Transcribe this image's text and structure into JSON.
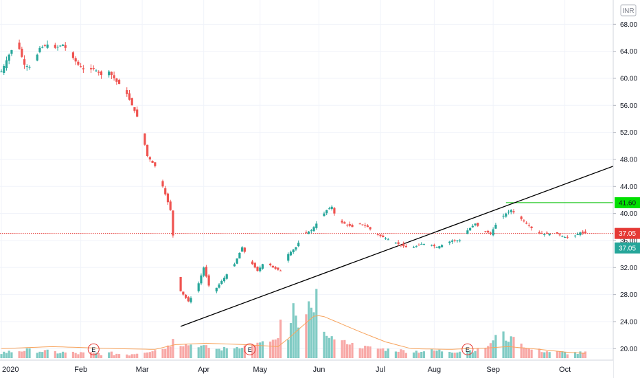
{
  "currency_label": "INR",
  "colors": {
    "up": "#26a69a",
    "down": "#ef5350",
    "up_volume": "#80cbc4",
    "down_volume": "#f8a8a6",
    "volume_ma": "#f7a35c",
    "trendline": "#000000",
    "resistance": "#00c000",
    "last_price_line": "#e53935",
    "grid": "#f0f3fa",
    "axis_text": "#131722"
  },
  "chart_data": {
    "type": "candlestick",
    "title": "",
    "ylim": [
      18.5,
      70.0
    ],
    "yticks": [
      20,
      24,
      28,
      32,
      36,
      40,
      44,
      48,
      52,
      56,
      60,
      64,
      68
    ],
    "yticks_labels": [
      "20.00",
      "24.00",
      "28.00",
      "32.00",
      "36.00",
      "40.00",
      "44.00",
      "48.00",
      "52.00",
      "56.00",
      "60.00",
      "64.00",
      "68.00"
    ],
    "x_labels": [
      "2020",
      "Feb",
      "Mar",
      "Apr",
      "May",
      "Jun",
      "Jul",
      "Aug",
      "Sep",
      "Oct"
    ],
    "close_anchors": [
      [
        0,
        61.0
      ],
      [
        3,
        63.5
      ],
      [
        6,
        65.5
      ],
      [
        9,
        62.0
      ],
      [
        12,
        61.5
      ],
      [
        15,
        64.5
      ],
      [
        18,
        65.0
      ],
      [
        21,
        64.5
      ],
      [
        24,
        65.0
      ],
      [
        27,
        63.5
      ],
      [
        30,
        62.0
      ],
      [
        33,
        61.0
      ],
      [
        36,
        61.5
      ],
      [
        39,
        60.5
      ],
      [
        42,
        61.0
      ],
      [
        45,
        59.5
      ],
      [
        48,
        58.5
      ],
      [
        51,
        56.0
      ],
      [
        54,
        53.5
      ],
      [
        57,
        48.5
      ],
      [
        60,
        47.0
      ],
      [
        63,
        44.0
      ],
      [
        66,
        40.5
      ],
      [
        68,
        33.0
      ],
      [
        70,
        28.5
      ],
      [
        73,
        27.0
      ],
      [
        76,
        28.5
      ],
      [
        79,
        32.0
      ],
      [
        82,
        28.0
      ],
      [
        85,
        29.5
      ],
      [
        88,
        31.0
      ],
      [
        91,
        32.5
      ],
      [
        94,
        35.0
      ],
      [
        97,
        33.0
      ],
      [
        100,
        31.5
      ],
      [
        103,
        33.0
      ],
      [
        106,
        32.0
      ],
      [
        109,
        31.5
      ],
      [
        112,
        34.0
      ],
      [
        115,
        35.0
      ],
      [
        118,
        37.0
      ],
      [
        121,
        37.5
      ],
      [
        124,
        39.0
      ],
      [
        127,
        40.5
      ],
      [
        129,
        41.0
      ],
      [
        131,
        39.0
      ],
      [
        134,
        38.5
      ],
      [
        137,
        38.0
      ],
      [
        140,
        38.5
      ],
      [
        143,
        38.0
      ],
      [
        146,
        37.0
      ],
      [
        149,
        36.5
      ],
      [
        152,
        36.0
      ],
      [
        155,
        35.5
      ],
      [
        158,
        35.0
      ],
      [
        161,
        35.0
      ],
      [
        164,
        35.5
      ],
      [
        167,
        35.5
      ],
      [
        170,
        35.0
      ],
      [
        173,
        35.5
      ],
      [
        176,
        36.0
      ],
      [
        179,
        36.0
      ],
      [
        182,
        37.5
      ],
      [
        185,
        38.5
      ],
      [
        188,
        37.5
      ],
      [
        191,
        37.0
      ],
      [
        194,
        39.0
      ],
      [
        197,
        40.0
      ],
      [
        199,
        40.5
      ],
      [
        202,
        39.5
      ],
      [
        205,
        38.5
      ],
      [
        208,
        37.5
      ],
      [
        211,
        37.0
      ],
      [
        214,
        37.0
      ],
      [
        217,
        37.0
      ],
      [
        220,
        36.5
      ],
      [
        223,
        36.5
      ],
      [
        226,
        37.2
      ],
      [
        228,
        37.05
      ]
    ],
    "volume_anchors": [
      [
        0,
        19.4
      ],
      [
        10,
        19.8
      ],
      [
        20,
        19.5
      ],
      [
        30,
        19.3
      ],
      [
        40,
        19.3
      ],
      [
        50,
        19.2
      ],
      [
        56,
        19.6
      ],
      [
        62,
        19.9
      ],
      [
        66,
        20.5
      ],
      [
        68,
        22.9
      ],
      [
        70,
        20.6
      ],
      [
        75,
        20.6
      ],
      [
        85,
        19.9
      ],
      [
        95,
        20.4
      ],
      [
        100,
        20.7
      ],
      [
        108,
        21.4
      ],
      [
        110,
        26.7
      ],
      [
        112,
        21.2
      ],
      [
        114,
        26.5
      ],
      [
        116,
        23.0
      ],
      [
        118,
        22.3
      ],
      [
        120,
        27.3
      ],
      [
        122,
        25.3
      ],
      [
        124,
        31.8
      ],
      [
        126,
        22.2
      ],
      [
        130,
        21.5
      ],
      [
        140,
        20.3
      ],
      [
        150,
        19.9
      ],
      [
        160,
        19.6
      ],
      [
        170,
        19.7
      ],
      [
        180,
        19.6
      ],
      [
        188,
        19.9
      ],
      [
        192,
        21.0
      ],
      [
        195,
        24.6
      ],
      [
        197,
        20.9
      ],
      [
        200,
        22.0
      ],
      [
        205,
        20.0
      ],
      [
        215,
        19.5
      ],
      [
        228,
        19.3
      ]
    ],
    "volume_ma_anchors": [
      [
        0,
        20.0
      ],
      [
        20,
        20.3
      ],
      [
        45,
        20.0
      ],
      [
        60,
        19.9
      ],
      [
        68,
        20.6
      ],
      [
        80,
        20.8
      ],
      [
        95,
        20.6
      ],
      [
        108,
        20.3
      ],
      [
        112,
        21.5
      ],
      [
        118,
        23.5
      ],
      [
        122,
        24.8
      ],
      [
        125,
        24.9
      ],
      [
        130,
        24.1
      ],
      [
        140,
        22.5
      ],
      [
        150,
        21.0
      ],
      [
        160,
        20.0
      ],
      [
        175,
        19.9
      ],
      [
        190,
        20.1
      ],
      [
        198,
        20.3
      ],
      [
        210,
        19.9
      ],
      [
        220,
        19.5
      ],
      [
        228,
        19.3
      ]
    ],
    "earnings_days": [
      36,
      97,
      182
    ],
    "earnings_label": "E",
    "trendline": {
      "start": [
        70,
        23.3
      ],
      "end": [
        241,
        47.3
      ]
    },
    "resistance": {
      "level": 41.6,
      "from_day": 197
    },
    "last_price": 37.05,
    "price_badges": [
      {
        "key": "resistance",
        "value": 41.6,
        "label": "41.60",
        "color": "#00e000",
        "text_color": "#131722"
      },
      {
        "key": "last-red",
        "value": 37.05,
        "label": "37.05",
        "color": "#e53935",
        "text_color": "#ffffff"
      },
      {
        "key": "last-teal",
        "value": 34.9,
        "label": "37.05",
        "color": "#26a69a",
        "text_color": "#ffffff"
      }
    ]
  }
}
